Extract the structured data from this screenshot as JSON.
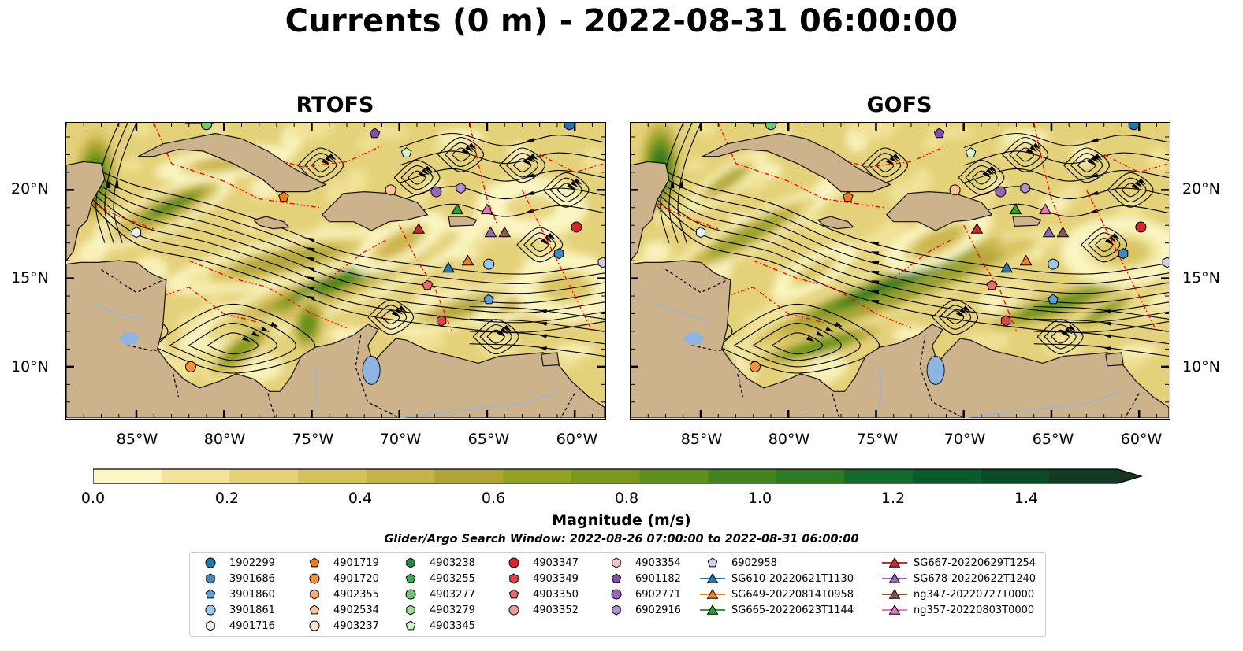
{
  "title": "Currents (0 m) - 2022-08-31 06:00:00",
  "panels": [
    {
      "title": "RTOFS"
    },
    {
      "title": "GOFS"
    }
  ],
  "axes": {
    "lat_labels": [
      "20°N",
      "15°N",
      "10°N"
    ],
    "lon_labels": [
      "85°W",
      "80°W",
      "75°W",
      "70°W",
      "65°W",
      "60°W"
    ],
    "lon_range": [
      -89,
      -58.3
    ],
    "lat_range": [
      7.1,
      23.8
    ]
  },
  "colorbar": {
    "label": "Magnitude (m/s)",
    "ticks": [
      "0.0",
      "0.2",
      "0.4",
      "0.6",
      "0.8",
      "1.0",
      "1.2",
      "1.4"
    ],
    "range": [
      0,
      1.5
    ],
    "extend": "max",
    "colors": [
      "#fbf6c4",
      "#f1e49a",
      "#e4d27a",
      "#d6c25c",
      "#c6b347",
      "#aea437",
      "#94a127",
      "#7b9a1d",
      "#5f8f1c",
      "#44831d",
      "#2e7a22",
      "#146a2c",
      "#0b5a2b",
      "#0a4a27",
      "#113c23",
      "#1b3420"
    ]
  },
  "search_window": "Glider/Argo Search Window: 2022-08-26 07:00:00 to 2022-08-31 06:00:00",
  "legend": {
    "columns": [
      [
        {
          "label": "1902299",
          "marker": "circle",
          "color": "#1f77b4"
        },
        {
          "label": "3901686",
          "marker": "hexagon",
          "color": "#3a8cc4"
        },
        {
          "label": "3901860",
          "marker": "pentagon",
          "color": "#5aa2dc"
        },
        {
          "label": "3901861",
          "marker": "circle",
          "color": "#9cc8ee"
        },
        {
          "label": "4901716",
          "marker": "hexagon",
          "color": "#e4f0fb"
        }
      ],
      [
        {
          "label": "4901719",
          "marker": "pentagon",
          "color": "#f07d1a"
        },
        {
          "label": "4901720",
          "marker": "circle",
          "color": "#f7913a"
        },
        {
          "label": "4902355",
          "marker": "hexagon",
          "color": "#f9b273"
        },
        {
          "label": "4902534",
          "marker": "pentagon",
          "color": "#fbc79a"
        },
        {
          "label": "4903237",
          "marker": "circle",
          "color": "#fde3c8"
        }
      ],
      [
        {
          "label": "4903238",
          "marker": "hexagon",
          "color": "#238b45"
        },
        {
          "label": "4903255",
          "marker": "pentagon",
          "color": "#41ab5d"
        },
        {
          "label": "4903277",
          "marker": "circle",
          "color": "#74c476"
        },
        {
          "label": "4903279",
          "marker": "hexagon",
          "color": "#a1d99b"
        },
        {
          "label": "4903345",
          "marker": "pentagon",
          "color": "#d5f5cf"
        }
      ],
      [
        {
          "label": "4903347",
          "marker": "circle",
          "color": "#d62728"
        },
        {
          "label": "4903349",
          "marker": "hexagon",
          "color": "#e04449"
        },
        {
          "label": "4903350",
          "marker": "pentagon",
          "color": "#ea6b70"
        },
        {
          "label": "4903352",
          "marker": "circle",
          "color": "#f29b9c"
        }
      ],
      [
        {
          "label": "4903354",
          "marker": "hexagon",
          "color": "#f8c8c8"
        },
        {
          "label": "6901182",
          "marker": "pentagon",
          "color": "#7f4fb0"
        },
        {
          "label": "6902771",
          "marker": "circle",
          "color": "#9467bd"
        },
        {
          "label": "6902916",
          "marker": "hexagon",
          "color": "#b08fd6"
        }
      ],
      [
        {
          "label": "6902958",
          "marker": "pentagon",
          "color": "#d9c6f0"
        },
        {
          "label": "SG610-20220621T1130",
          "marker": "triangle-line",
          "color": "#1f77b4"
        },
        {
          "label": "SG649-20220814T0958",
          "marker": "triangle-line",
          "color": "#ff7f0e"
        },
        {
          "label": "SG665-20220623T1144",
          "marker": "triangle-line",
          "color": "#2ca02c"
        }
      ],
      [
        {
          "label": "SG667-20220629T1254",
          "marker": "triangle-line",
          "color": "#d62728"
        },
        {
          "label": "SG678-20220622T1240",
          "marker": "triangle-line",
          "color": "#9467bd"
        },
        {
          "label": "ng347-20220727T0000",
          "marker": "triangle-line",
          "color": "#8c564b"
        },
        {
          "label": "ng357-20220803T0000",
          "marker": "triangle-line",
          "color": "#e377c2"
        }
      ]
    ]
  },
  "markers": [
    {
      "lon": -60.3,
      "lat": 23.7,
      "marker": "circle",
      "color": "#1f77b4"
    },
    {
      "lon": -60.9,
      "lat": 16.4,
      "marker": "hexagon",
      "color": "#3a8cc4"
    },
    {
      "lon": -64.9,
      "lat": 13.8,
      "marker": "pentagon",
      "color": "#5aa2dc"
    },
    {
      "lon": -64.9,
      "lat": 15.8,
      "marker": "circle",
      "color": "#9cc8ee"
    },
    {
      "lon": -85.0,
      "lat": 17.6,
      "marker": "hexagon",
      "color": "#e4f0fb"
    },
    {
      "lon": -76.6,
      "lat": 19.6,
      "marker": "pentagon",
      "color": "#f07d1a"
    },
    {
      "lon": -81.9,
      "lat": 10.0,
      "marker": "circle",
      "color": "#f7913a"
    },
    {
      "lon": -70.5,
      "lat": 20.0,
      "marker": "circle",
      "color": "#fbc79a"
    },
    {
      "lon": -81.0,
      "lat": 23.7,
      "marker": "circle",
      "color": "#74c476"
    },
    {
      "lon": -69.6,
      "lat": 22.1,
      "marker": "pentagon",
      "color": "#d5f5cf"
    },
    {
      "lon": -59.9,
      "lat": 17.9,
      "marker": "circle",
      "color": "#d62728"
    },
    {
      "lon": -68.4,
      "lat": 14.6,
      "marker": "pentagon",
      "color": "#ea6b70"
    },
    {
      "lon": -67.6,
      "lat": 12.6,
      "marker": "hexagon",
      "color": "#e04449"
    },
    {
      "lon": -71.4,
      "lat": 23.2,
      "marker": "pentagon",
      "color": "#7f4fb0"
    },
    {
      "lon": -67.9,
      "lat": 19.9,
      "marker": "circle",
      "color": "#9467bd"
    },
    {
      "lon": -66.5,
      "lat": 20.1,
      "marker": "hexagon",
      "color": "#b08fd6"
    },
    {
      "lon": -58.4,
      "lat": 15.9,
      "marker": "hexagon",
      "color": "#d9c6f0"
    },
    {
      "lon": -67.2,
      "lat": 15.6,
      "marker": "triangle",
      "color": "#1f77b4"
    },
    {
      "lon": -66.1,
      "lat": 16.0,
      "marker": "triangle",
      "color": "#ff7f0e"
    },
    {
      "lon": -66.7,
      "lat": 18.9,
      "marker": "triangle",
      "color": "#2ca02c"
    },
    {
      "lon": -68.9,
      "lat": 17.8,
      "marker": "triangle",
      "color": "#d62728"
    },
    {
      "lon": -64.8,
      "lat": 17.6,
      "marker": "triangle",
      "color": "#9467bd"
    },
    {
      "lon": -64.0,
      "lat": 17.6,
      "marker": "triangle",
      "color": "#8c564b"
    },
    {
      "lon": -65.0,
      "lat": 18.9,
      "marker": "triangle",
      "color": "#e377c2"
    }
  ],
  "colors": {
    "land": "#cdb38c",
    "lake": "#8db4e2",
    "rivers": "#9bb6d3",
    "eez": "#ff0000",
    "streamline": "#000000"
  }
}
